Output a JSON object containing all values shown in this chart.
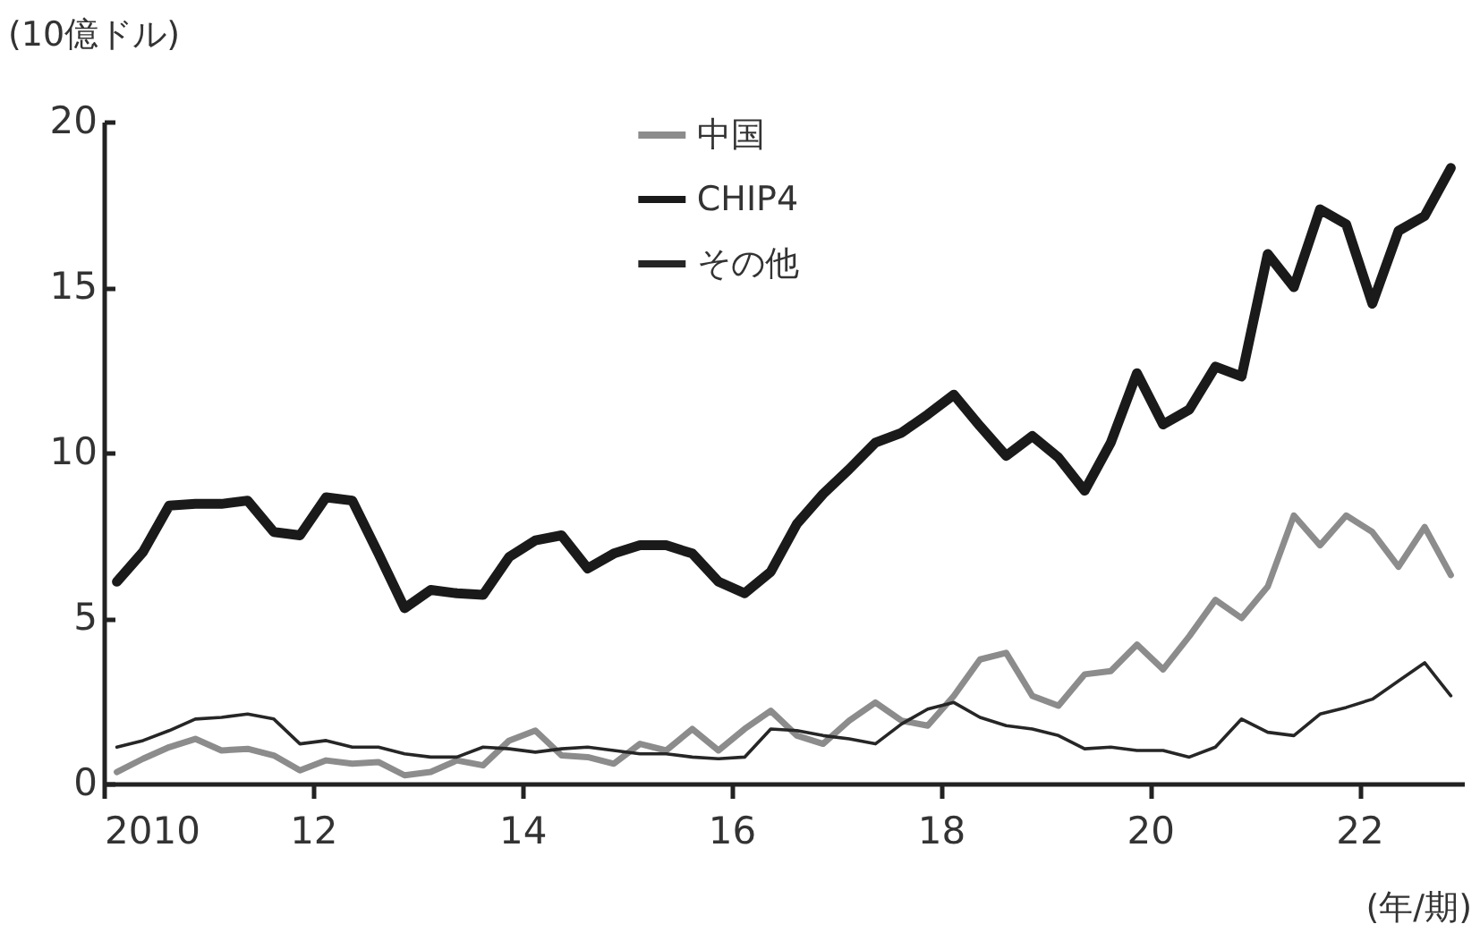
{
  "chart_data": {
    "type": "line",
    "ylabel": "(10億ドル)",
    "xlabel": "(年/期)",
    "x": [
      2010.125,
      2010.375,
      2010.625,
      2010.875,
      2011.125,
      2011.375,
      2011.625,
      2011.875,
      2012.125,
      2012.375,
      2012.625,
      2012.875,
      2013.125,
      2013.375,
      2013.625,
      2013.875,
      2014.125,
      2014.375,
      2014.625,
      2014.875,
      2015.125,
      2015.375,
      2015.625,
      2015.875,
      2016.125,
      2016.375,
      2016.625,
      2016.875,
      2017.125,
      2017.375,
      2017.625,
      2017.875,
      2018.125,
      2018.375,
      2018.625,
      2018.875,
      2019.125,
      2019.375,
      2019.625,
      2019.875,
      2020.125,
      2020.375,
      2020.625,
      2020.875,
      2021.125,
      2021.375,
      2021.625,
      2021.875,
      2022.125,
      2022.375,
      2022.625,
      2022.875
    ],
    "series": [
      {
        "name": "中国",
        "color": "#8c8c8c",
        "values": [
          0.35,
          0.75,
          1.1,
          1.35,
          1.0,
          1.05,
          0.85,
          0.4,
          0.7,
          0.6,
          0.65,
          0.25,
          0.35,
          0.7,
          0.55,
          1.3,
          1.6,
          0.85,
          0.8,
          0.6,
          1.2,
          1.0,
          1.65,
          1.0,
          1.65,
          2.2,
          1.45,
          1.2,
          1.9,
          2.45,
          1.9,
          1.75,
          2.65,
          3.75,
          3.95,
          2.65,
          2.35,
          3.3,
          3.4,
          4.2,
          3.45,
          4.45,
          5.55,
          5.0,
          5.95,
          8.1,
          7.2,
          8.1,
          7.6,
          6.55,
          7.75,
          6.3
        ]
      },
      {
        "name": "CHIP4",
        "color": "#1a1a1a",
        "values": [
          6.1,
          7.0,
          8.4,
          8.45,
          8.45,
          8.55,
          7.6,
          7.5,
          8.65,
          8.55,
          6.95,
          5.3,
          5.85,
          5.75,
          5.7,
          6.85,
          7.35,
          7.5,
          6.5,
          6.95,
          7.2,
          7.2,
          6.95,
          6.1,
          5.75,
          6.4,
          7.85,
          8.75,
          9.5,
          10.3,
          10.6,
          11.15,
          11.75,
          10.8,
          9.9,
          10.5,
          9.85,
          8.85,
          10.3,
          12.4,
          10.85,
          11.3,
          12.6,
          12.3,
          16.0,
          15.0,
          17.35,
          16.9,
          14.5,
          16.7,
          17.15,
          18.6
        ]
      },
      {
        "name": "その他",
        "color": "#262626",
        "values": [
          1.1,
          1.3,
          1.6,
          1.95,
          2.0,
          2.1,
          1.95,
          1.2,
          1.3,
          1.1,
          1.1,
          0.9,
          0.8,
          0.8,
          1.1,
          1.05,
          0.95,
          1.05,
          1.1,
          1.0,
          0.9,
          0.9,
          0.8,
          0.75,
          0.8,
          1.65,
          1.6,
          1.45,
          1.35,
          1.2,
          1.8,
          2.25,
          2.45,
          2.0,
          1.75,
          1.65,
          1.45,
          1.05,
          1.1,
          1.0,
          1.0,
          0.8,
          1.1,
          1.95,
          1.55,
          1.45,
          2.1,
          2.3,
          2.55,
          3.1,
          3.65,
          2.65
        ]
      }
    ],
    "xlim": [
      2010,
      2023
    ],
    "xticks": [
      {
        "value": 2010,
        "label": "2010"
      },
      {
        "value": 2012,
        "label": "12"
      },
      {
        "value": 2014,
        "label": "14"
      },
      {
        "value": 2016,
        "label": "16"
      },
      {
        "value": 2018,
        "label": "18"
      },
      {
        "value": 2020,
        "label": "20"
      },
      {
        "value": 2022,
        "label": "22"
      }
    ],
    "ylim": [
      0,
      20
    ],
    "yticks": [
      0,
      5,
      10,
      15,
      20
    ],
    "legend": "top",
    "grid": false
  }
}
